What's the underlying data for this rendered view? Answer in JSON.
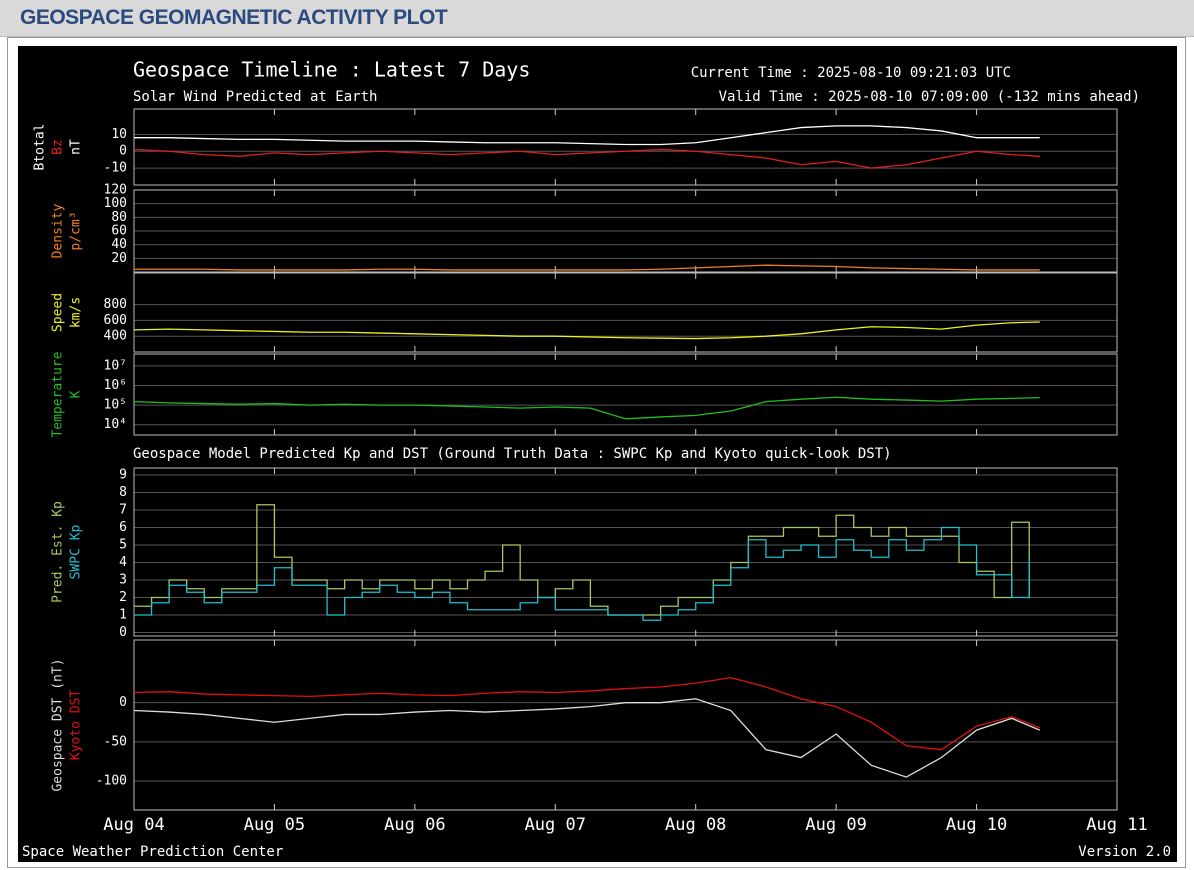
{
  "header_title": "GEOSPACE GEOMAGNETIC ACTIVITY PLOT",
  "title": "Geospace Timeline : Latest 7 Days",
  "subtitle": "Solar Wind Predicted at Earth",
  "current_time": "Current Time : 2025-08-10 09:21:03 UTC",
  "valid_time": "Valid Time : 2025-08-10 07:09:00 (-132 mins ahead)",
  "section_title": "Geospace Model Predicted Kp and DST (Ground Truth Data : SWPC Kp and Kyoto quick-look DST)",
  "footer_left": "Space Weather Prediction Center",
  "footer_right": "Version 2.0",
  "chart_data": [
    {
      "type": "line",
      "ylabel": "nT",
      "ylabel_color": "#ffffff",
      "grid": true,
      "x": [
        0,
        0.25,
        0.5,
        0.75,
        1,
        1.25,
        1.5,
        1.75,
        2,
        2.25,
        2.5,
        2.75,
        3,
        3.25,
        3.5,
        3.75,
        4,
        4.25,
        4.5,
        4.75,
        5,
        5.25,
        5.5,
        5.75,
        6,
        6.25,
        6.45
      ],
      "xlim": [
        0,
        7
      ],
      "ylim": [
        -20,
        25
      ],
      "yticks": [
        -10,
        0,
        10
      ],
      "series": [
        {
          "name": "Btotal",
          "color": "#ffffff",
          "values": [
            8,
            8,
            7.5,
            7,
            7,
            6.5,
            6,
            6,
            6,
            5.5,
            5,
            5,
            5,
            4.5,
            4,
            4,
            5,
            8,
            11,
            14,
            15,
            15,
            14,
            12,
            8,
            8,
            8
          ]
        },
        {
          "name": "Bz",
          "color": "#e02020",
          "values": [
            1,
            0,
            -2,
            -3,
            -1,
            -2,
            -1,
            0,
            -1,
            -2,
            -1,
            0,
            -2,
            -1,
            0,
            1,
            0,
            -2,
            -4,
            -8,
            -6,
            -10,
            -8,
            -4,
            0,
            -2,
            -3
          ]
        }
      ]
    },
    {
      "type": "line",
      "ylabel": "p/cm³",
      "ylabel_color": "#f08020",
      "grid": true,
      "x": [
        0,
        0.25,
        0.5,
        0.75,
        1,
        1.25,
        1.5,
        1.75,
        2,
        2.25,
        2.5,
        2.75,
        3,
        3.25,
        3.5,
        3.75,
        4,
        4.25,
        4.5,
        4.75,
        5,
        5.25,
        5.5,
        5.75,
        6,
        6.25,
        6.45
      ],
      "xlim": [
        0,
        7
      ],
      "ylim": [
        0,
        120
      ],
      "yticks": [
        20,
        40,
        60,
        80,
        100,
        120
      ],
      "series": [
        {
          "name": "Density",
          "color": "#f08020",
          "values": [
            4,
            4,
            4,
            3,
            3,
            3,
            3,
            4,
            4,
            3,
            3,
            3,
            3,
            3,
            3,
            4,
            6,
            8,
            10,
            9,
            8,
            6,
            5,
            4,
            3,
            3,
            3
          ]
        }
      ]
    },
    {
      "type": "line",
      "ylabel": "km/s",
      "ylabel_color": "#f0f020",
      "grid": true,
      "x": [
        0,
        0.25,
        0.5,
        0.75,
        1,
        1.25,
        1.5,
        1.75,
        2,
        2.25,
        2.5,
        2.75,
        3,
        3.25,
        3.5,
        3.75,
        4,
        4.25,
        4.5,
        4.75,
        5,
        5.25,
        5.5,
        5.75,
        6,
        6.25,
        6.45
      ],
      "xlim": [
        0,
        7
      ],
      "ylim": [
        200,
        1200
      ],
      "yticks": [
        400,
        600,
        800
      ],
      "series": [
        {
          "name": "Speed",
          "color": "#f0f020",
          "values": [
            480,
            490,
            480,
            470,
            460,
            450,
            450,
            440,
            430,
            420,
            410,
            400,
            400,
            390,
            380,
            375,
            370,
            380,
            400,
            430,
            480,
            520,
            510,
            490,
            540,
            570,
            580
          ]
        }
      ]
    },
    {
      "type": "line",
      "ylabel": "K",
      "ylabel_color": "#20c020",
      "grid": true,
      "log": true,
      "x": [
        0,
        0.25,
        0.5,
        0.75,
        1,
        1.25,
        1.5,
        1.75,
        2,
        2.25,
        2.5,
        2.75,
        3,
        3.25,
        3.5,
        3.75,
        4,
        4.25,
        4.5,
        4.75,
        5,
        5.25,
        5.5,
        5.75,
        6,
        6.25,
        6.45
      ],
      "xlim": [
        0,
        7
      ],
      "ylim": [
        3000,
        40000000
      ],
      "yticks": [
        {
          "value": 10000,
          "label": "10⁴"
        },
        {
          "value": 100000,
          "label": "10⁵"
        },
        {
          "value": 1000000,
          "label": "10⁶"
        },
        {
          "value": 10000000,
          "label": "10⁷"
        }
      ],
      "series": [
        {
          "name": "Temperature",
          "color": "#20c020",
          "values": [
            150000,
            130000,
            120000,
            110000,
            120000,
            100000,
            110000,
            100000,
            100000,
            90000,
            80000,
            70000,
            80000,
            70000,
            20000,
            25000,
            30000,
            50000,
            150000,
            200000,
            250000,
            200000,
            180000,
            160000,
            200000,
            220000,
            240000
          ]
        }
      ]
    },
    {
      "type": "line",
      "step": true,
      "grid": true,
      "x": [
        0,
        0.125,
        0.25,
        0.375,
        0.5,
        0.625,
        0.75,
        0.875,
        1,
        1.125,
        1.25,
        1.375,
        1.5,
        1.625,
        1.75,
        1.875,
        2,
        2.125,
        2.25,
        2.375,
        2.5,
        2.625,
        2.75,
        2.875,
        3,
        3.125,
        3.25,
        3.375,
        3.5,
        3.625,
        3.75,
        3.875,
        4,
        4.125,
        4.25,
        4.375,
        4.5,
        4.625,
        4.75,
        4.875,
        5,
        5.125,
        5.25,
        5.375,
        5.5,
        5.625,
        5.75,
        5.875,
        6,
        6.125,
        6.25,
        6.375
      ],
      "xlim": [
        0,
        7
      ],
      "ylim": [
        -0.2,
        9.4
      ],
      "yticks": [
        0,
        1,
        2,
        3,
        4,
        5,
        6,
        7,
        8,
        9
      ],
      "series": [
        {
          "name": "Pred. Est. Kp",
          "color": "#a8c860",
          "values": [
            1.5,
            2,
            3,
            2.5,
            2,
            2.5,
            2.5,
            7.3,
            4.3,
            3,
            3,
            2.5,
            3,
            2.5,
            3,
            3,
            2.5,
            3,
            2.5,
            3,
            3.5,
            5,
            3,
            2,
            2.5,
            3,
            1.5,
            1,
            1,
            1,
            1.5,
            2,
            2,
            3,
            4,
            5.5,
            5.5,
            6,
            6,
            5.5,
            6.7,
            6,
            5.5,
            6,
            5.5,
            5.5,
            5.5,
            4,
            3.5,
            2,
            6.3,
            2
          ]
        },
        {
          "name": "SWPC Kp",
          "color": "#20c0d0",
          "values": [
            1,
            1.7,
            2.7,
            2.3,
            1.7,
            2.3,
            2.3,
            2.7,
            3.7,
            2.7,
            2.7,
            1,
            2,
            2.3,
            2.7,
            2.3,
            2,
            2.3,
            1.7,
            1.3,
            1.3,
            1.3,
            1.7,
            2,
            1.3,
            1.3,
            1.3,
            1,
            1,
            0.7,
            1,
            1.3,
            1.7,
            2.7,
            3.7,
            5.3,
            4.3,
            4.7,
            5,
            4.3,
            5.3,
            4.7,
            4.3,
            5.3,
            4.7,
            5.3,
            6,
            5,
            3.3,
            3.3,
            2,
            4.3
          ]
        }
      ]
    },
    {
      "type": "line",
      "grid": true,
      "x": [
        0,
        0.25,
        0.5,
        0.75,
        1,
        1.25,
        1.5,
        1.75,
        2,
        2.25,
        2.5,
        2.75,
        3,
        3.25,
        3.5,
        3.75,
        4,
        4.25,
        4.5,
        4.75,
        5,
        5.25,
        5.5,
        5.75,
        6,
        6.25,
        6.45
      ],
      "xlim": [
        0,
        7
      ],
      "ylim": [
        -137,
        80
      ],
      "yticks": [
        -100,
        -50,
        0
      ],
      "xticks": [
        {
          "value": 0,
          "label": "Aug 04"
        },
        {
          "value": 1,
          "label": "Aug 05"
        },
        {
          "value": 2,
          "label": "Aug 06"
        },
        {
          "value": 3,
          "label": "Aug 07"
        },
        {
          "value": 4,
          "label": "Aug 08"
        },
        {
          "value": 5,
          "label": "Aug 09"
        },
        {
          "value": 6,
          "label": "Aug 10"
        },
        {
          "value": 7,
          "label": "Aug 11"
        }
      ],
      "series": [
        {
          "name": "Geospace DST (nT)",
          "color": "#dddddd",
          "values": [
            -10,
            -12,
            -15,
            -20,
            -25,
            -20,
            -15,
            -15,
            -12,
            -10,
            -12,
            -10,
            -8,
            -5,
            0,
            0,
            5,
            -10,
            -60,
            -70,
            -40,
            -80,
            -95,
            -70,
            -35,
            -20,
            -35
          ]
        },
        {
          "name": "Kyoto DST",
          "color": "#e01010",
          "values": [
            13,
            14,
            11,
            10,
            9,
            8,
            10,
            12,
            10,
            9,
            12,
            14,
            13,
            15,
            18,
            20,
            25,
            32,
            20,
            5,
            -5,
            -25,
            -55,
            -60,
            -30,
            -18,
            -32
          ]
        }
      ]
    }
  ]
}
